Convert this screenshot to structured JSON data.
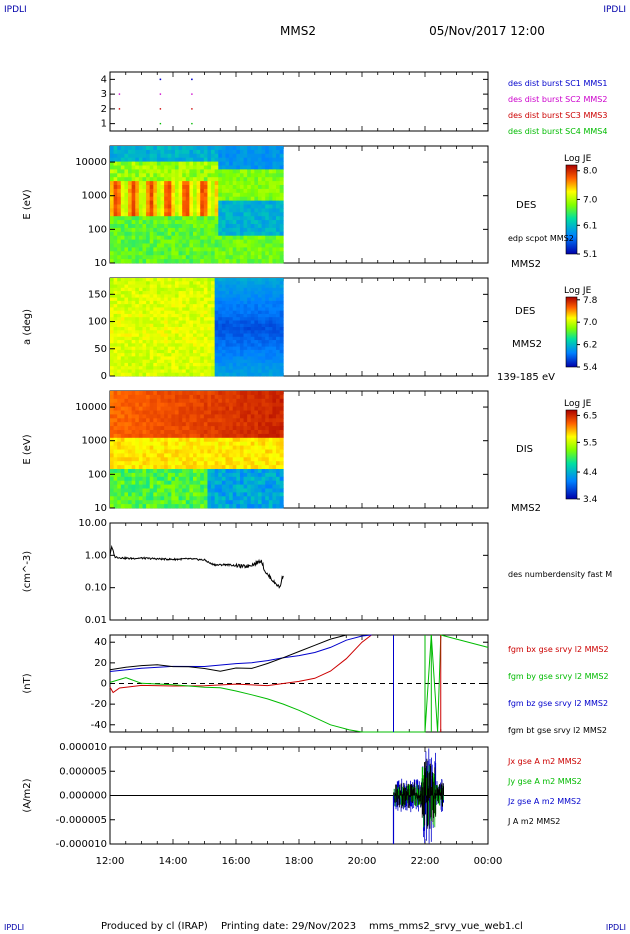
{
  "header": {
    "corner_left": "IPDLI",
    "corner_right": "IPDLI",
    "title": "MMS2",
    "datetime": "05/Nov/2017 12:00"
  },
  "footer": {
    "producer": "Produced by cl (IRAP)",
    "printing": "Printing date: 29/Nov/2023",
    "file": "mms_mms2_srvy_vue_web1.cl",
    "corner_left": "IPDLI",
    "corner_right": "IPDLI"
  },
  "chart_data": [
    {
      "id": "availability",
      "type": "scatter",
      "ylim": [
        0.5,
        4.5
      ],
      "yticks": [
        "1",
        "2",
        "3",
        "4"
      ],
      "legend_placement": "right",
      "series": [
        {
          "name": "des dist burst SC1 MMS1",
          "color": "#0000cc",
          "y": 4,
          "x": [
            13.6,
            14.6,
            13.6,
            14.6
          ]
        },
        {
          "name": "des dist burst SC2 MMS2",
          "color": "#cc00cc",
          "y": 3,
          "x": [
            12.3,
            13.6,
            14.6
          ]
        },
        {
          "name": "des dist burst SC3 MMS3",
          "color": "#cc0000",
          "y": 2,
          "x": [
            12.3,
            13.6,
            14.6
          ]
        },
        {
          "name": "des dist burst SC4 MMS4",
          "color": "#00bb00",
          "y": 1,
          "x": [
            13.6,
            14.6
          ]
        }
      ]
    },
    {
      "id": "des-energy",
      "type": "heatmap",
      "ylabel": "E (eV)",
      "yscale": "log",
      "ylim": [
        10,
        30000
      ],
      "yticks": [
        "10",
        "100",
        "1000",
        "10000"
      ],
      "data_end_hour": 17.5,
      "right_labels": [
        "DES",
        "edp scpot MMS2",
        "MMS2"
      ],
      "colorbar": {
        "title": "Log JE",
        "ticks": [
          "8.0",
          "7.0",
          "6.1",
          "5.1"
        ],
        "range": [
          5.1,
          8.2
        ]
      }
    },
    {
      "id": "des-pitch",
      "type": "heatmap",
      "ylabel": "a (deg)",
      "ylim": [
        0,
        180
      ],
      "yticks": [
        "0",
        "50",
        "100",
        "150"
      ],
      "data_end_hour": 17.5,
      "right_labels": [
        "DES",
        "MMS2",
        "139-185 eV"
      ],
      "colorbar": {
        "title": "Log JE",
        "ticks": [
          "7.8",
          "7.0",
          "6.2",
          "5.4"
        ],
        "range": [
          5.4,
          7.9
        ]
      }
    },
    {
      "id": "dis-energy",
      "type": "heatmap",
      "ylabel": "E (eV)",
      "yscale": "log",
      "ylim": [
        10,
        30000
      ],
      "yticks": [
        "10",
        "100",
        "1000",
        "10000"
      ],
      "data_end_hour": 17.5,
      "right_labels": [
        "DIS",
        "MMS2"
      ],
      "colorbar": {
        "title": "Log JE",
        "ticks": [
          "6.5",
          "5.5",
          "4.4",
          "3.4"
        ],
        "range": [
          3.4,
          6.7
        ]
      }
    },
    {
      "id": "density",
      "type": "line",
      "ylabel": "(cm^-3)",
      "yscale": "log",
      "ylim": [
        0.01,
        10
      ],
      "yticks": [
        "10.00",
        "1.00",
        "0.10",
        "0.01"
      ],
      "series": [
        {
          "name": "des numberdensity fast M",
          "color": "#000000",
          "x": [
            12.0,
            12.05,
            12.15,
            12.3,
            12.6,
            13.0,
            13.5,
            14.0,
            14.5,
            15.0,
            15.2,
            15.4,
            15.7,
            16.0,
            16.3,
            16.6,
            16.8,
            16.9,
            17.0,
            17.2,
            17.4,
            17.5
          ],
          "y": [
            1.0,
            1.8,
            0.9,
            0.85,
            0.8,
            0.82,
            0.78,
            0.75,
            0.78,
            0.72,
            0.55,
            0.5,
            0.52,
            0.48,
            0.45,
            0.55,
            0.7,
            0.35,
            0.25,
            0.15,
            0.1,
            0.25
          ]
        }
      ]
    },
    {
      "id": "magnetic-field",
      "type": "line",
      "ylabel": "(nT)",
      "ylim": [
        -47,
        47
      ],
      "yticks": [
        "40",
        "20",
        "0",
        "-20",
        "-40"
      ],
      "series": [
        {
          "name": "fgm bx gse srvy l2 MMS2",
          "color": "#cc0000",
          "x": [
            12.0,
            12.1,
            12.3,
            13.0,
            14.0,
            15.0,
            16.0,
            17.0,
            18.0,
            18.5,
            19.0,
            19.5,
            20.0,
            20.3
          ],
          "y": [
            -2,
            -10,
            -3,
            -2,
            -2,
            -2,
            -1,
            -1,
            2,
            5,
            12,
            24,
            40,
            50
          ],
          "color_key": "red"
        },
        {
          "name": "fgm by gse srvy l2 MMS2",
          "color": "#00bb00",
          "x": [
            12.0,
            12.5,
            13.0,
            14.0,
            15.0,
            15.5,
            16.0,
            16.5,
            17.0,
            17.5,
            18.0,
            18.5,
            19.0,
            19.6,
            20.0,
            22.0,
            22.2,
            22.4,
            22.5,
            24.0
          ],
          "y": [
            2,
            5,
            0,
            -1,
            -3,
            -5,
            -8,
            -11,
            -15,
            -20,
            -26,
            -33,
            -40,
            -45,
            -47,
            -47,
            47,
            -47,
            47,
            35
          ]
        },
        {
          "name": "fgm bz gse srvy l2 MMS2",
          "color": "#0000cc",
          "x": [
            12.0,
            13.0,
            14.0,
            15.0,
            16.0,
            16.5,
            17.0,
            17.5,
            18.0,
            18.5,
            19.0,
            19.5,
            20.0,
            20.3
          ],
          "y": [
            13,
            16,
            17,
            17,
            18,
            20,
            22,
            25,
            27,
            30,
            35,
            42,
            46,
            47
          ]
        },
        {
          "name": "fgm bt gse srvy l2 MMS2",
          "color": "#000000",
          "x": [
            12.0,
            12.5,
            13.0,
            13.5,
            14.0,
            14.5,
            15.0,
            15.5,
            16.0,
            16.5,
            17.0,
            17.5,
            18.0,
            18.5,
            19.0,
            19.5
          ],
          "y": [
            14,
            16,
            18,
            17,
            16,
            15,
            14,
            13,
            14,
            16,
            20,
            25,
            31,
            37,
            43,
            47
          ]
        }
      ]
    },
    {
      "id": "current-density",
      "type": "line",
      "ylabel": "(A/m2)",
      "ylim": [
        -1e-05,
        1e-05
      ],
      "yticks": [
        "0.000010",
        "0.000005",
        "0.000000",
        "-0.000005",
        "-0.000010"
      ],
      "series": [
        {
          "name": "Jx gse A m2 MMS2",
          "color": "#cc0000"
        },
        {
          "name": "Jy gse A m2 MMS2",
          "color": "#00bb00"
        },
        {
          "name": "Jz gse A m2 MMS2",
          "color": "#0000cc"
        },
        {
          "name": "J A m2 MMS2",
          "color": "#000000"
        }
      ]
    }
  ],
  "xaxis": {
    "ticks": [
      "12:00",
      "14:00",
      "16:00",
      "18:00",
      "20:00",
      "22:00",
      "00:00"
    ],
    "xlim": [
      12,
      24
    ]
  }
}
